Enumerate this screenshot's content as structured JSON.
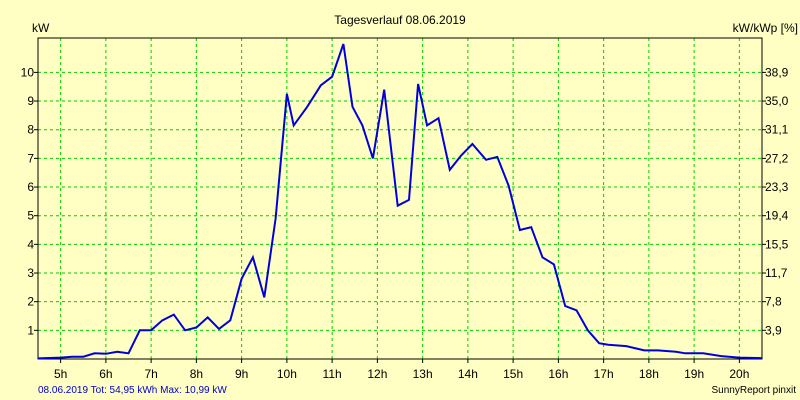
{
  "chart_data": {
    "type": "line",
    "title": "Tagesverlauf 08.06.2019",
    "ylabel": "kW",
    "ylabel_right": "kW/kWp [%]",
    "xlim": [
      4.5,
      20.5
    ],
    "ylim": [
      0,
      11.2
    ],
    "x_ticks": [
      5,
      6,
      7,
      8,
      9,
      10,
      11,
      12,
      13,
      14,
      15,
      16,
      17,
      18,
      19,
      20
    ],
    "x_tick_labels": [
      "5h",
      "6h",
      "7h",
      "8h",
      "9h",
      "10h",
      "11h",
      "12h",
      "13h",
      "14h",
      "15h",
      "16h",
      "17h",
      "18h",
      "19h",
      "20h"
    ],
    "y_ticks": [
      1,
      2,
      3,
      4,
      5,
      6,
      7,
      8,
      9,
      10
    ],
    "y_tick_labels": [
      "1",
      "2",
      "3",
      "4",
      "5",
      "6",
      "7",
      "8",
      "9",
      "10"
    ],
    "y2_ticks": [
      1,
      2,
      3,
      4,
      5,
      6,
      7,
      8,
      9,
      10
    ],
    "y2_tick_labels": [
      "3,9",
      "7,8",
      "11,7",
      "15,5",
      "19,4",
      "23,3",
      "27,2",
      "31,1",
      "35,0",
      "38,9"
    ],
    "grid": true,
    "colors": {
      "line": "#0000dd",
      "grid": "#00cc00",
      "background": "#ffffc4"
    },
    "series": [
      {
        "x": [
          4.5,
          5.0,
          5.25,
          5.5,
          5.75,
          6.0,
          6.25,
          6.5,
          6.75,
          7.0,
          7.25,
          7.5,
          7.75,
          8.0,
          8.25,
          8.5,
          8.75,
          9.0,
          9.25,
          9.5,
          9.75,
          10.0,
          10.15,
          10.45,
          10.75,
          11.0,
          11.25,
          11.45,
          11.67,
          11.9,
          12.15,
          12.45,
          12.7,
          12.9,
          13.1,
          13.35,
          13.6,
          13.85,
          14.1,
          14.4,
          14.65,
          14.9,
          15.15,
          15.4,
          15.65,
          15.9,
          16.15,
          16.4,
          16.65,
          16.9,
          17.1,
          17.5,
          17.9,
          18.2,
          18.6,
          18.8,
          19.2,
          19.6,
          20.0,
          20.5
        ],
        "values": [
          0.02,
          0.05,
          0.08,
          0.08,
          0.2,
          0.18,
          0.25,
          0.2,
          1.0,
          1.0,
          1.35,
          1.55,
          1.0,
          1.1,
          1.45,
          1.05,
          1.35,
          2.8,
          3.55,
          2.15,
          4.9,
          9.25,
          8.15,
          8.8,
          9.55,
          9.85,
          10.99,
          8.8,
          8.15,
          7.0,
          9.4,
          5.35,
          5.55,
          9.6,
          8.15,
          8.4,
          6.6,
          7.1,
          7.5,
          6.95,
          7.05,
          6.05,
          4.5,
          4.6,
          3.55,
          3.3,
          1.85,
          1.7,
          1.0,
          0.55,
          0.5,
          0.45,
          0.3,
          0.3,
          0.25,
          0.2,
          0.2,
          0.1,
          0.05,
          0.03
        ]
      }
    ]
  },
  "footer": {
    "summary": "08.06.2019 Tot: 54,95 kWh Max: 10,99 kW",
    "credit": "SunnyReport pinxit"
  }
}
